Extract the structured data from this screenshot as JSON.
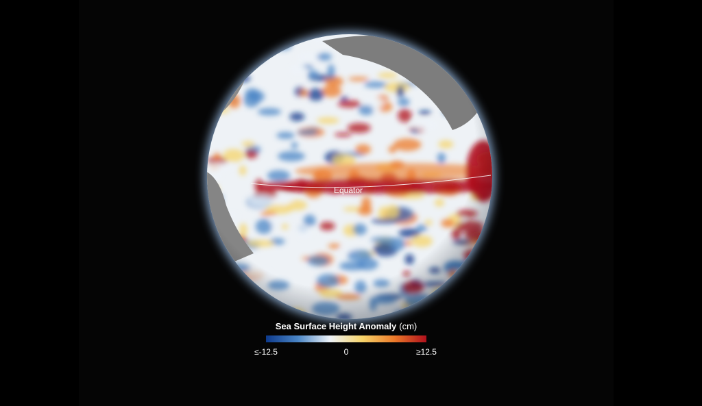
{
  "globe": {
    "label": "Equator"
  },
  "legend": {
    "title": "Sea Surface Height Anomaly",
    "unit": "(cm)",
    "colors": [
      "#0d3a8c",
      "#4b86c6",
      "#eef3f8",
      "#f6d46a",
      "#ec7a2a",
      "#b0101c"
    ],
    "ticks": [
      {
        "value": -12.5,
        "label": "≤-12.5"
      },
      0,
      {
        "value": 12.5,
        "label": "≥12.5"
      }
    ]
  }
}
